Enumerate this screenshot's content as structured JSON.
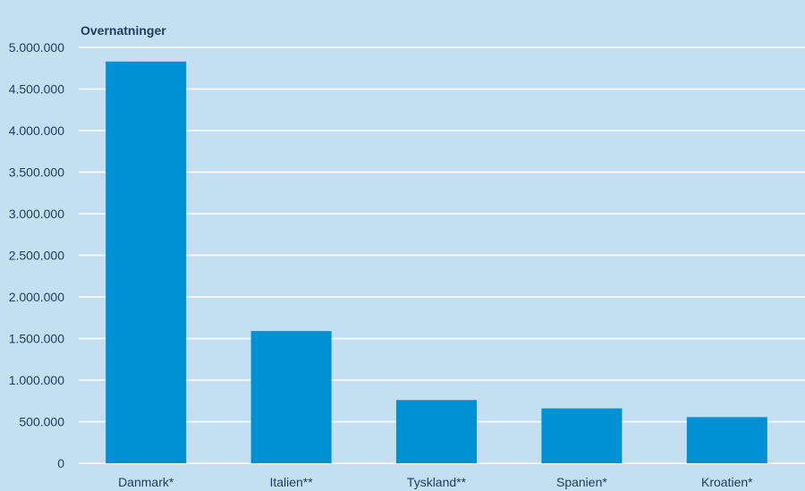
{
  "chart_data": {
    "type": "bar",
    "ylabel": "Overnatninger",
    "categories": [
      "Danmark*",
      "Italien**",
      "Tyskland**",
      "Spanien*",
      "Kroatien*"
    ],
    "values": [
      4830000,
      1590000,
      760000,
      660000,
      555000
    ],
    "ylim": [
      0,
      5000000
    ],
    "yticks": [
      "0",
      "500.000",
      "1.000.000",
      "1.500.000",
      "2.000.000",
      "2.500.000",
      "3.000.000",
      "3.500.000",
      "4.000.000",
      "4.500.000",
      "5.000.000"
    ],
    "ytick_values": [
      0,
      500000,
      1000000,
      1500000,
      2000000,
      2500000,
      3000000,
      3500000,
      4000000,
      4500000,
      5000000
    ],
    "grid": true,
    "legend": "none",
    "colors": {
      "bar": "#0090d4",
      "background": "#c5dff2",
      "grid": "#ffffff",
      "text": "#1d3a5f"
    }
  }
}
